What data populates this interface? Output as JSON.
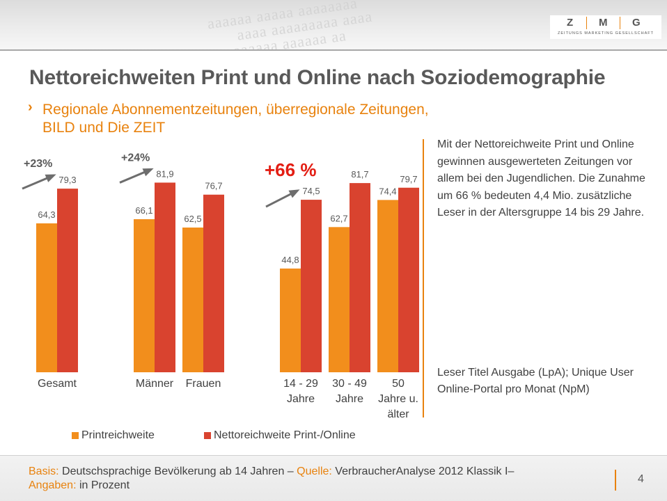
{
  "header": {
    "logo_letters": [
      "Z",
      "M",
      "G"
    ],
    "logo_subtitle": "ZEITUNGS MARKETING GESELLSCHAFT",
    "title": "Nettoreichweiten Print und Online nach Soziodemographie"
  },
  "subtitle": {
    "chevron": "›",
    "line1": "Regionale Abonnementzeitungen, überregionale Zeitungen,",
    "line2": "BILD und Die ZEIT"
  },
  "side_note": {
    "text": "Mit der Nettoreichweite Print und Online gewinnen ausgewerteten Zeitungen vor allem bei den Jugendlichen. Die Zunahme um 66 % bedeuten 4,4 Mio. zusätzliche Leser in der Altersgruppe 14 bis 29 Jahre.",
    "source": "Leser Titel Ausgabe (LpA); Unique User Online-Portal pro Monat (NpM)"
  },
  "chart_data": {
    "type": "bar",
    "title": "",
    "xlabel": "",
    "ylabel": "",
    "ylim": [
      0,
      100
    ],
    "grid": false,
    "categories": [
      "Gesamt",
      "Männer",
      "Frauen",
      "14 - 29 Jahre",
      "30 - 49 Jahre",
      "50 Jahre u. älter"
    ],
    "category_lines": [
      [
        "Gesamt"
      ],
      [
        "Männer"
      ],
      [
        "Frauen"
      ],
      [
        "14 - 29",
        "Jahre"
      ],
      [
        "30 - 49",
        "Jahre"
      ],
      [
        "50",
        "Jahre u.",
        "älter"
      ]
    ],
    "series": [
      {
        "name": "Printreichweite",
        "color": "#f28e1c",
        "values": [
          64.3,
          66.1,
          62.5,
          44.8,
          62.7,
          74.4
        ],
        "labels": [
          "64,3",
          "66,1",
          "62,5",
          "44,8",
          "62,7",
          "74,4"
        ]
      },
      {
        "name": "Nettoreichweite Print-/Online",
        "color": "#d9432f",
        "values": [
          79.3,
          81.9,
          76.7,
          74.5,
          81.7,
          79.7
        ],
        "labels": [
          "79,3",
          "81,9",
          "76,7",
          "74,5",
          "81,7",
          "79,7"
        ]
      }
    ],
    "annotations": [
      {
        "category": "Gesamt",
        "text": "+23%",
        "color": "#595959",
        "emphasis": "normal"
      },
      {
        "category": "Männer",
        "text": "+24%",
        "color": "#595959",
        "emphasis": "normal"
      },
      {
        "category": "14 - 29 Jahre",
        "text": "+66 %",
        "color": "#e31e14",
        "emphasis": "large"
      }
    ],
    "legend_position": "bottom-left"
  },
  "footer": {
    "basis_label": "Basis:",
    "basis_text": "Deutschsprachige Bevölkerung ab 14 Jahren –",
    "source_label": "Quelle:",
    "source_text": "VerbraucherAnalyse 2012 Klassik I–",
    "unit_label": "Angaben:",
    "unit_text": "in Prozent",
    "page_number": "4"
  },
  "colors": {
    "accent": "#e8820e",
    "print": "#f28e1c",
    "online": "#d9432f",
    "highlight": "#e31e14"
  }
}
